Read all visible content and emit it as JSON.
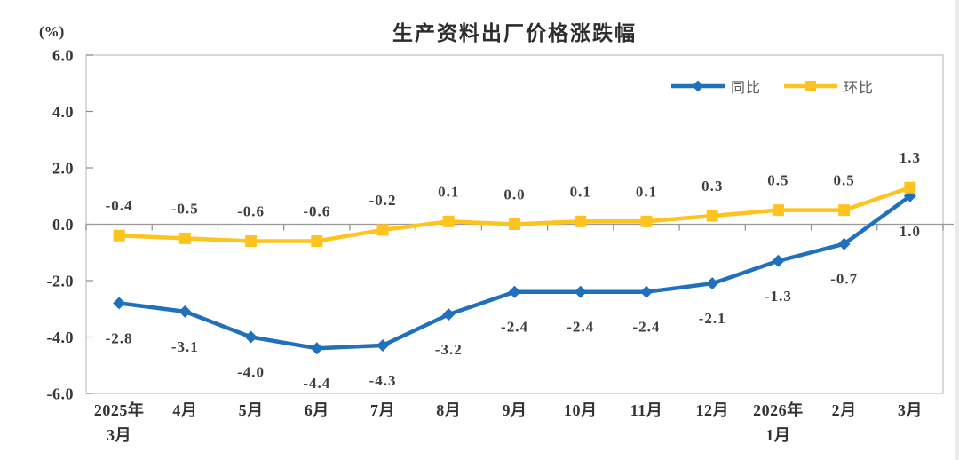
{
  "title": "生产资料出厂价格涨跌幅",
  "unit_label": "(%)",
  "legend": {
    "items": [
      {
        "label": "同比"
      },
      {
        "label": "环比"
      }
    ]
  },
  "chart_data": {
    "type": "line",
    "title": "生产资料出厂价格涨跌幅",
    "ylabel": "(%)",
    "xlabel": "",
    "categories": [
      [
        "2025年",
        "3月"
      ],
      [
        "4月"
      ],
      [
        "5月"
      ],
      [
        "6月"
      ],
      [
        "7月"
      ],
      [
        "8月"
      ],
      [
        "9月"
      ],
      [
        "10月"
      ],
      [
        "11月"
      ],
      [
        "12月"
      ],
      [
        "2026年",
        "1月"
      ],
      [
        "2月"
      ],
      [
        "3月"
      ]
    ],
    "ylim": [
      -6.0,
      6.0
    ],
    "y_tick_labels": [
      "6.0",
      "4.0",
      "2.0",
      "0.0",
      "-2.0",
      "-4.0",
      "-6.0"
    ],
    "grid": "zero-axis-line-only",
    "legend_position": "top-right",
    "series": [
      {
        "name": "同比",
        "color": "#2170bd",
        "marker": "diamond",
        "label_position": "below",
        "values": [
          -2.8,
          -3.1,
          -4.0,
          -4.4,
          -4.3,
          -3.2,
          -2.4,
          -2.4,
          -2.4,
          -2.1,
          -1.3,
          -0.7,
          1.0
        ],
        "labels": [
          "-2.8",
          "-3.1",
          "-4.0",
          "-4.4",
          "-4.3",
          "-3.2",
          "-2.4",
          "-2.4",
          "-2.4",
          "-2.1",
          "-1.3",
          "-0.7",
          "1.0"
        ]
      },
      {
        "name": "环比",
        "color": "#ffc31e",
        "marker": "square",
        "label_position": "above",
        "values": [
          -0.4,
          -0.5,
          -0.6,
          -0.6,
          -0.2,
          0.1,
          0.0,
          0.1,
          0.1,
          0.3,
          0.5,
          0.5,
          1.3
        ],
        "labels": [
          "-0.4",
          "-0.5",
          "-0.6",
          "-0.6",
          "-0.2",
          "0.1",
          "0.0",
          "0.1",
          "0.1",
          "0.3",
          "0.5",
          "0.5",
          "1.3"
        ]
      }
    ],
    "colors": {
      "title_text": "#2d2d2d",
      "axis_text": "#333333",
      "data_label_text": "#3e3e3e",
      "legend_text": "#595959",
      "plot_border": "#c6c6c6",
      "zero_line": "#9a9a9a",
      "tick": "#8c8c8c",
      "background": "#ffffff"
    }
  }
}
